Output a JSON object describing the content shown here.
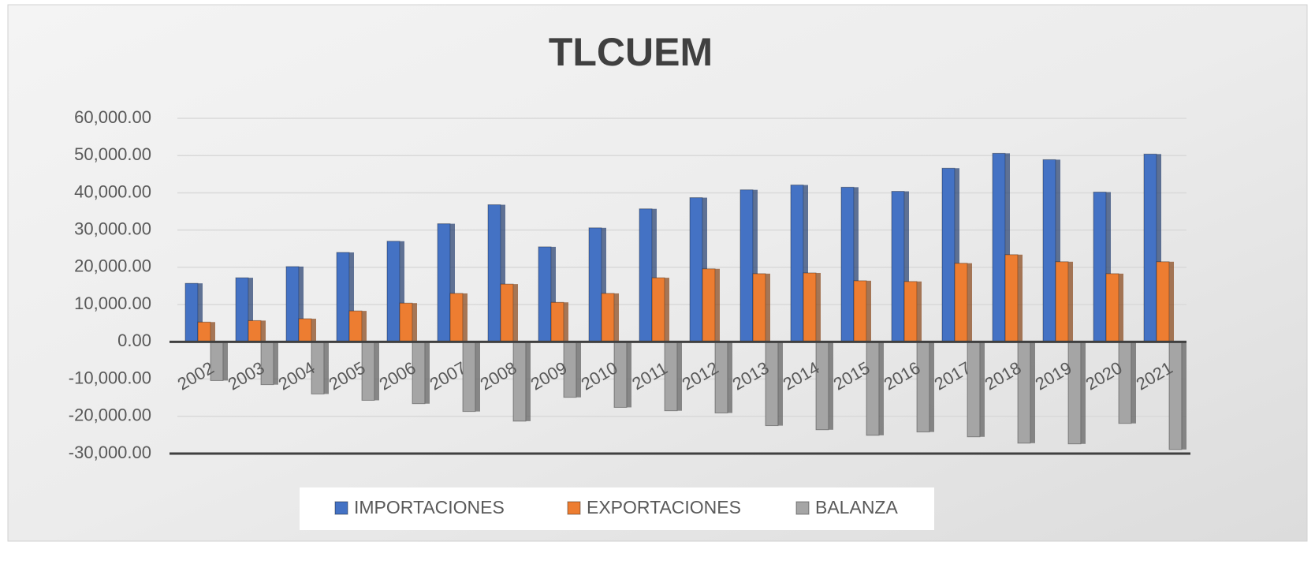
{
  "chart_data": {
    "type": "bar",
    "title": "TLCUEM",
    "categories": [
      "2002",
      "2003",
      "2004",
      "2005",
      "2006",
      "2007",
      "2008",
      "2009",
      "2010",
      "2011",
      "2012",
      "2013",
      "2014",
      "2015",
      "2016",
      "2017",
      "2018",
      "2019",
      "2020",
      "2021"
    ],
    "series": [
      {
        "name": "IMPORTACIONES",
        "color": "#4472c4",
        "values": [
          15700,
          17200,
          20200,
          24000,
          27000,
          31700,
          36800,
          25500,
          30600,
          35700,
          38700,
          40800,
          42100,
          41500,
          40400,
          46600,
          50600,
          48900,
          40200,
          50400
        ]
      },
      {
        "name": "EXPORTACIONES",
        "color": "#ed7d31",
        "values": [
          5300,
          5700,
          6200,
          8300,
          10400,
          13000,
          15500,
          10600,
          13000,
          17200,
          19600,
          18300,
          18500,
          16400,
          16200,
          21100,
          23400,
          21500,
          18300,
          21500
        ]
      },
      {
        "name": "BALANZA",
        "color": "#a5a5a5",
        "values": [
          -10400,
          -11500,
          -14000,
          -15700,
          -16600,
          -18700,
          -21300,
          -14900,
          -17600,
          -18500,
          -19100,
          -22500,
          -23600,
          -25100,
          -24200,
          -25500,
          -27200,
          -27400,
          -21900,
          -28900
        ]
      }
    ],
    "ylim": [
      -30000,
      60000
    ],
    "yticks": [
      {
        "value": -30000,
        "label": "-30,000.00"
      },
      {
        "value": -20000,
        "label": "-20,000.00"
      },
      {
        "value": -10000,
        "label": "-10,000.00"
      },
      {
        "value": 0,
        "label": "0.00"
      },
      {
        "value": 10000,
        "label": "10,000.00"
      },
      {
        "value": 20000,
        "label": "20,000.00"
      },
      {
        "value": 30000,
        "label": "30,000.00"
      },
      {
        "value": 40000,
        "label": "40,000.00"
      },
      {
        "value": 50000,
        "label": "50,000.00"
      },
      {
        "value": 60000,
        "label": "60,000.00"
      }
    ],
    "grid": true,
    "legend": "bottom"
  }
}
